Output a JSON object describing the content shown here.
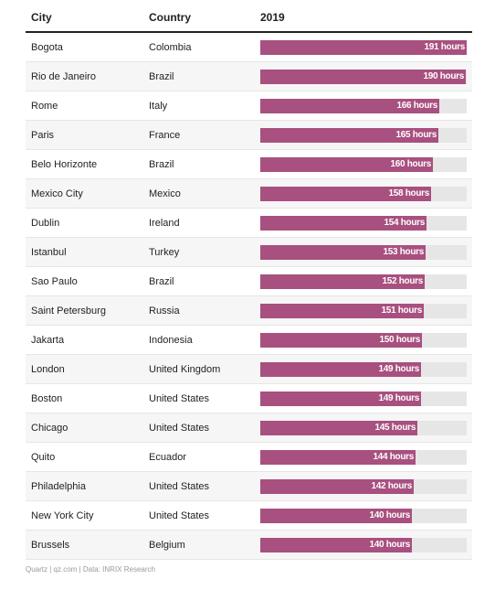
{
  "header": {
    "city": "City",
    "country": "Country",
    "year": "2019"
  },
  "chart_data": {
    "type": "bar",
    "orientation": "horizontal",
    "xlim": [
      0,
      191
    ],
    "value_unit": "hours",
    "rows": [
      {
        "city": "Bogota",
        "country": "Colombia",
        "value": 191,
        "label": "191 hours"
      },
      {
        "city": "Rio de Janeiro",
        "country": "Brazil",
        "value": 190,
        "label": "190 hours"
      },
      {
        "city": "Rome",
        "country": "Italy",
        "value": 166,
        "label": "166 hours"
      },
      {
        "city": "Paris",
        "country": "France",
        "value": 165,
        "label": "165 hours"
      },
      {
        "city": "Belo Horizonte",
        "country": "Brazil",
        "value": 160,
        "label": "160 hours"
      },
      {
        "city": "Mexico City",
        "country": "Mexico",
        "value": 158,
        "label": "158 hours"
      },
      {
        "city": "Dublin",
        "country": "Ireland",
        "value": 154,
        "label": "154 hours"
      },
      {
        "city": "Istanbul",
        "country": "Turkey",
        "value": 153,
        "label": "153 hours"
      },
      {
        "city": "Sao Paulo",
        "country": "Brazil",
        "value": 152,
        "label": "152 hours"
      },
      {
        "city": "Saint Petersburg",
        "country": "Russia",
        "value": 151,
        "label": "151 hours"
      },
      {
        "city": "Jakarta",
        "country": "Indonesia",
        "value": 150,
        "label": "150 hours"
      },
      {
        "city": "London",
        "country": "United Kingdom",
        "value": 149,
        "label": "149 hours"
      },
      {
        "city": "Boston",
        "country": "United States",
        "value": 149,
        "label": "149 hours"
      },
      {
        "city": "Chicago",
        "country": "United States",
        "value": 145,
        "label": "145 hours"
      },
      {
        "city": "Quito",
        "country": "Ecuador",
        "value": 144,
        "label": "144 hours"
      },
      {
        "city": "Philadelphia",
        "country": "United States",
        "value": 142,
        "label": "142 hours"
      },
      {
        "city": "New York City",
        "country": "United States",
        "value": 140,
        "label": "140 hours"
      },
      {
        "city": "Brussels",
        "country": "Belgium",
        "value": 140,
        "label": "140 hours"
      }
    ],
    "colors": {
      "bar": "#a8507f",
      "track": "#e6e6e6"
    }
  },
  "source": "Quartz | qz.com | Data: INRIX Research"
}
